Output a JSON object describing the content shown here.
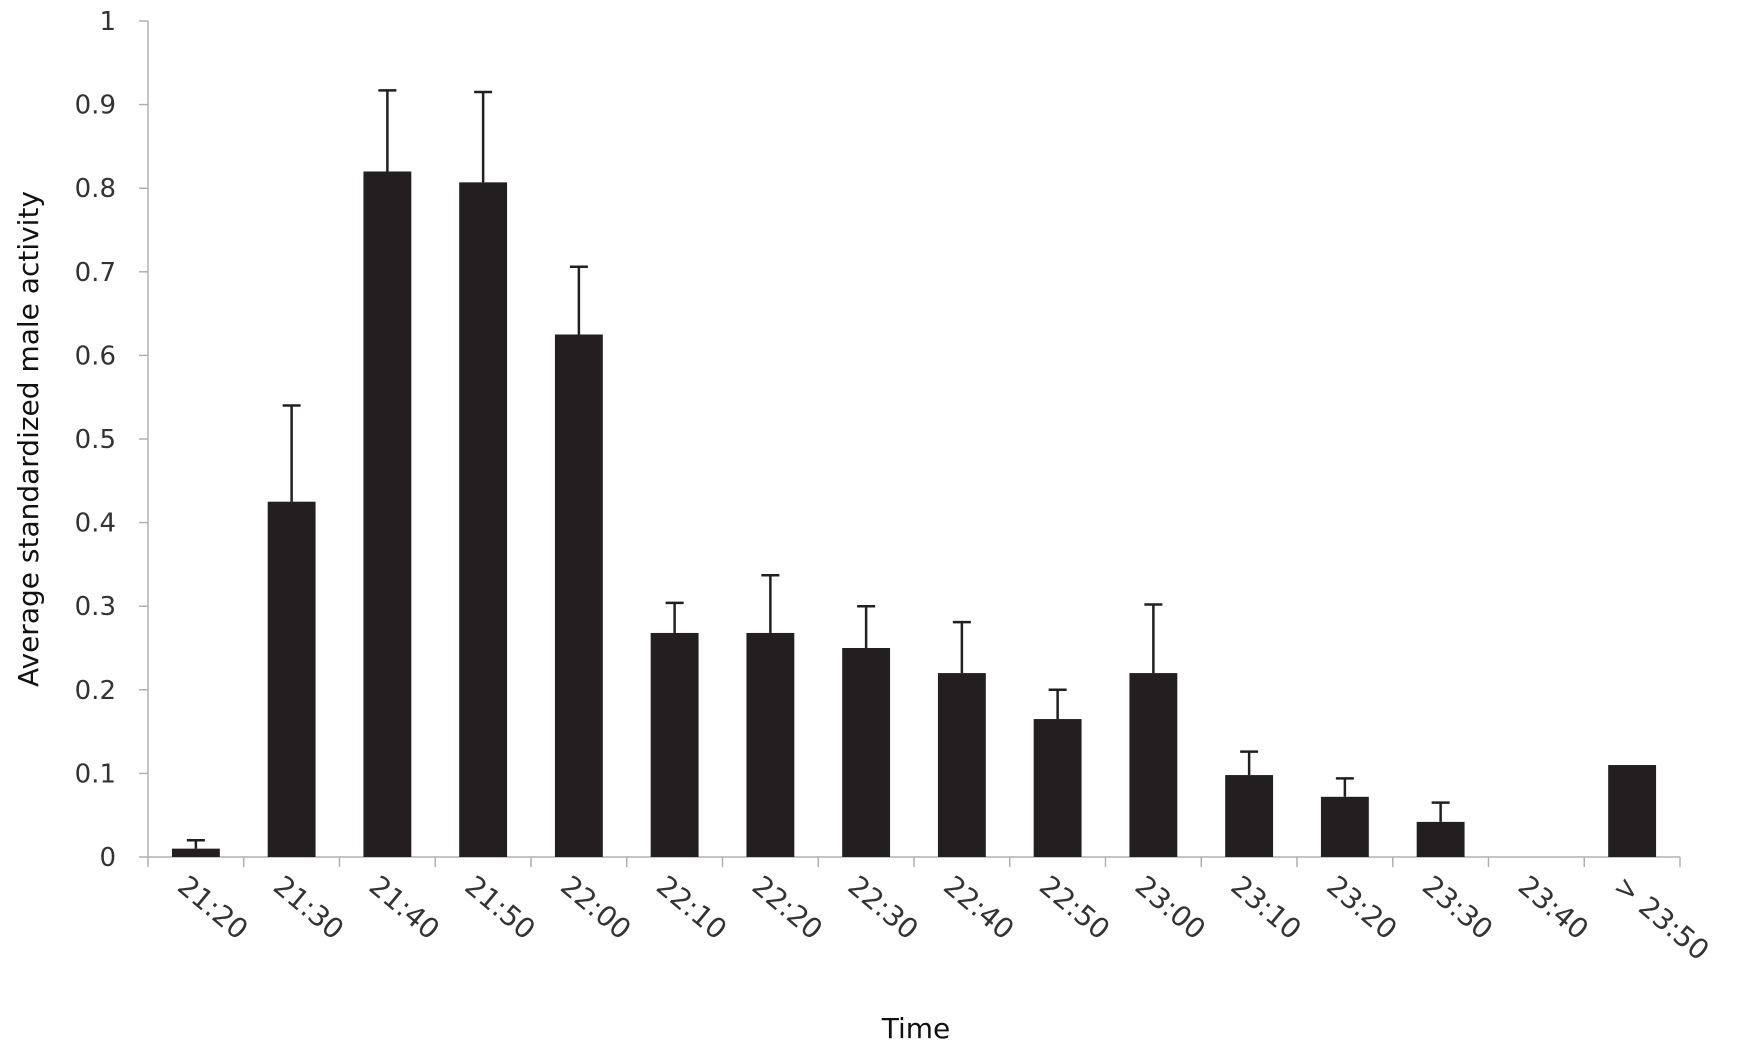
{
  "chart_data": {
    "type": "bar",
    "title": "",
    "xlabel": "Time",
    "ylabel": "Average standardized male activity",
    "ylim": [
      0,
      1
    ],
    "yticks": [
      "0",
      "0.1",
      "0.2",
      "0.3",
      "0.4",
      "0.5",
      "0.6",
      "0.7",
      "0.8",
      "0.9",
      "1"
    ],
    "categories": [
      "21:20",
      "21:30",
      "21:40",
      "21:50",
      "22:00",
      "22:10",
      "22:20",
      "22:30",
      "22:40",
      "22:50",
      "23:00",
      "23:10",
      "23:20",
      "23:30",
      "23:40",
      "> 23:50"
    ],
    "values": [
      0.01,
      0.425,
      0.82,
      0.807,
      0.625,
      0.268,
      0.268,
      0.25,
      0.22,
      0.165,
      0.22,
      0.098,
      0.072,
      0.042,
      0,
      0.11
    ],
    "error_upper": [
      0.02,
      0.54,
      0.917,
      0.915,
      0.706,
      0.304,
      0.337,
      0.3,
      0.281,
      0.2,
      0.302,
      0.126,
      0.094,
      0.065,
      null,
      null
    ],
    "grid": false,
    "legend": "none",
    "colors": {
      "bar": "#231f20",
      "axis": "#b0b0b0"
    }
  }
}
